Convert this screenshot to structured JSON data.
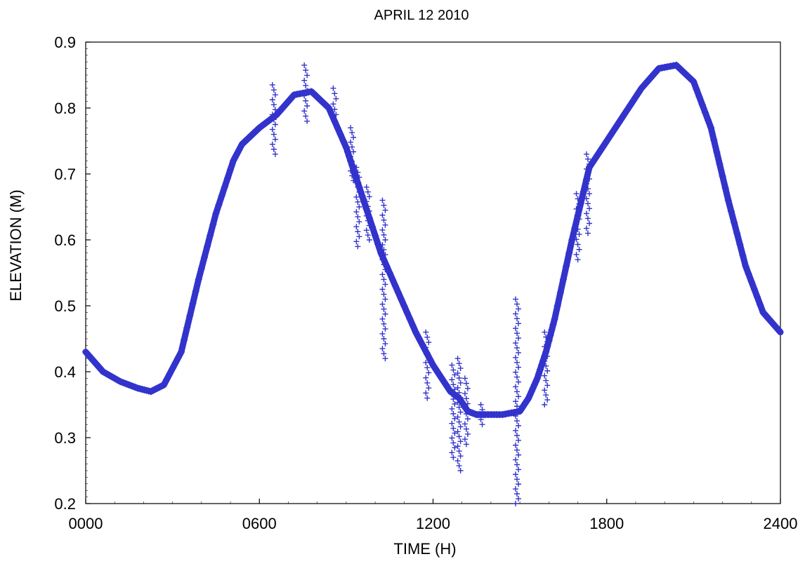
{
  "chart_data": {
    "type": "scatter",
    "title": "APRIL 12 2010",
    "xlabel": "TIME (H)",
    "ylabel": "ELEVATION (M)",
    "xlim": [
      0,
      2400
    ],
    "ylim": [
      0.2,
      0.9
    ],
    "x_ticks": [
      "0000",
      "0600",
      "1200",
      "1800",
      "2400"
    ],
    "x_tick_values": [
      0,
      600,
      1200,
      1800,
      2400
    ],
    "y_ticks": [
      "0.2",
      "0.3",
      "0.4",
      "0.5",
      "0.6",
      "0.7",
      "0.8",
      "0.9"
    ],
    "y_tick_values": [
      0.2,
      0.3,
      0.4,
      0.5,
      0.6,
      0.7,
      0.8,
      0.9
    ],
    "grid": false,
    "marker": "+",
    "color": "#3333CC",
    "series": [
      {
        "x": [
          0,
          60,
          120,
          180,
          225,
          270,
          330,
          390,
          450,
          510,
          540,
          600,
          660,
          720,
          780,
          840,
          900,
          930,
          960,
          1020,
          1080,
          1140,
          1200,
          1260,
          1290,
          1320,
          1350,
          1380,
          1440,
          1500,
          1530,
          1560,
          1590,
          1620,
          1680,
          1740,
          1800,
          1860,
          1920,
          1980,
          2040,
          2100,
          2160,
          2220,
          2280,
          2340,
          2400
        ],
        "y": [
          0.43,
          0.4,
          0.385,
          0.375,
          0.37,
          0.38,
          0.43,
          0.54,
          0.64,
          0.72,
          0.745,
          0.77,
          0.79,
          0.82,
          0.825,
          0.8,
          0.74,
          0.7,
          0.66,
          0.58,
          0.52,
          0.46,
          0.41,
          0.37,
          0.36,
          0.34,
          0.335,
          0.335,
          0.335,
          0.34,
          0.36,
          0.39,
          0.43,
          0.48,
          0.6,
          0.71,
          0.75,
          0.79,
          0.83,
          0.86,
          0.865,
          0.84,
          0.77,
          0.66,
          0.56,
          0.49,
          0.46
        ]
      }
    ],
    "outliers": [
      {
        "x": 650,
        "y": [
          0.73,
          0.835
        ]
      },
      {
        "x": 760,
        "y": [
          0.78,
          0.865
        ]
      },
      {
        "x": 860,
        "y": [
          0.79,
          0.83
        ]
      },
      {
        "x": 920,
        "y": [
          0.69,
          0.77
        ]
      },
      {
        "x": 940,
        "y": [
          0.59,
          0.71
        ]
      },
      {
        "x": 975,
        "y": [
          0.6,
          0.68
        ]
      },
      {
        "x": 1030,
        "y": [
          0.42,
          0.66
        ]
      },
      {
        "x": 1180,
        "y": [
          0.36,
          0.46
        ]
      },
      {
        "x": 1270,
        "y": [
          0.27,
          0.41
        ]
      },
      {
        "x": 1290,
        "y": [
          0.25,
          0.42
        ]
      },
      {
        "x": 1315,
        "y": [
          0.29,
          0.39
        ]
      },
      {
        "x": 1370,
        "y": [
          0.32,
          0.35
        ]
      },
      {
        "x": 1490,
        "y": [
          0.2,
          0.51
        ]
      },
      {
        "x": 1590,
        "y": [
          0.35,
          0.46
        ]
      },
      {
        "x": 1700,
        "y": [
          0.57,
          0.67
        ]
      },
      {
        "x": 1735,
        "y": [
          0.61,
          0.73
        ]
      }
    ]
  }
}
